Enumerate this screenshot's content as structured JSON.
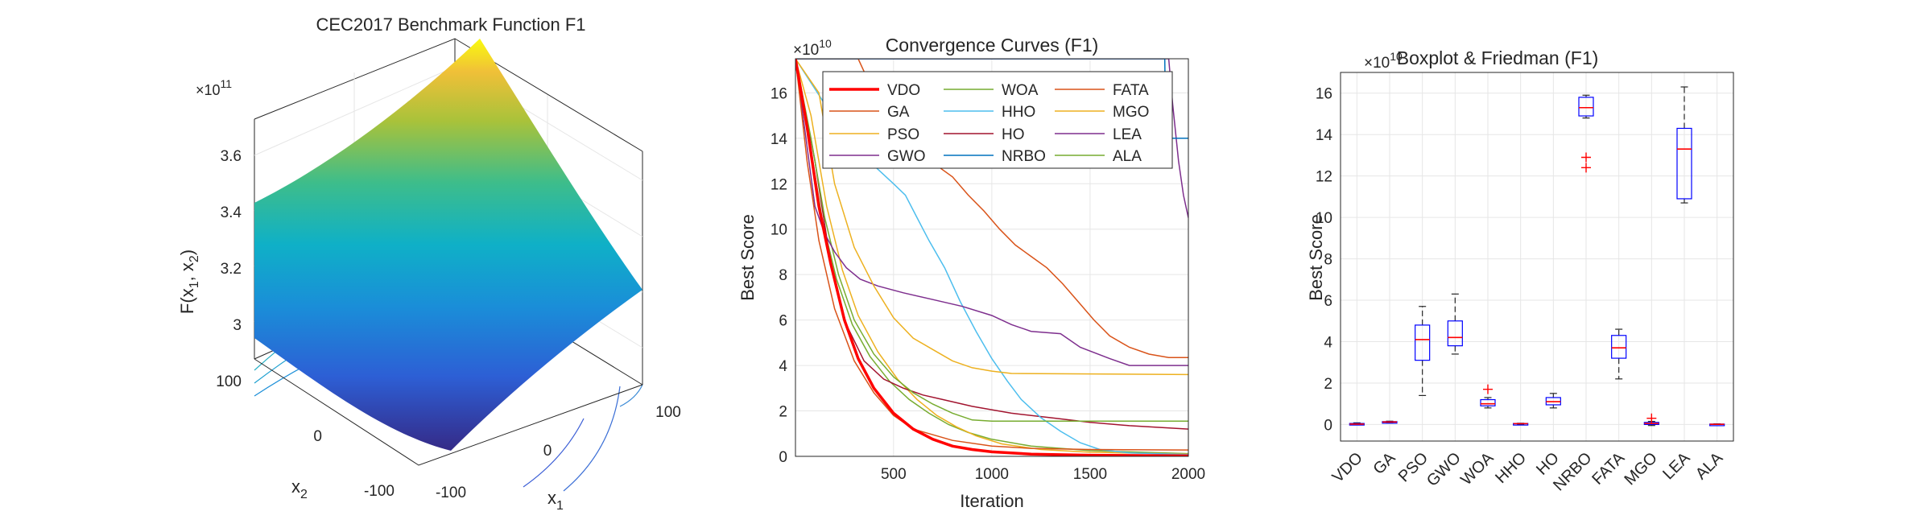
{
  "chart_data": [
    {
      "type": "surface",
      "title": "CEC2017 Benchmark Function F1",
      "zlabel_main": "F(x",
      "zlabel_sub1": "1",
      "zlabel_mid": ", x",
      "zlabel_sub2": "2",
      "zlabel_end": ")",
      "xlabel_main": "x",
      "xlabel_sub": "1",
      "ylabel_main": "x",
      "ylabel_sub": "2",
      "exponent_base": "×10",
      "exponent_power": "11",
      "z_ticks": [
        "3",
        "3.2",
        "3.4",
        "3.6"
      ],
      "z_tick_values": [
        3.0,
        3.2,
        3.4,
        3.6
      ],
      "x_ticks": [
        "-100",
        "0",
        "100"
      ],
      "y_ticks": [
        "100",
        "0",
        "-100"
      ],
      "zlim": [
        2.9,
        3.85
      ],
      "colormap": "parula"
    },
    {
      "type": "line",
      "title": "Convergence Curves (F1)",
      "xlabel": "Iteration",
      "ylabel": "Best Score",
      "exponent_base": "×10",
      "exponent_power": "10",
      "xlim": [
        1,
        2000
      ],
      "ylim": [
        0,
        17.5
      ],
      "x_ticks": [
        500,
        1000,
        1500,
        2000
      ],
      "y_ticks": [
        0,
        2,
        4,
        6,
        8,
        10,
        12,
        14,
        16
      ],
      "series": [
        {
          "name": "VDO",
          "color": "#ff0000",
          "width": 3.5,
          "points": [
            [
              1,
              17.5
            ],
            [
              60,
              14.5
            ],
            [
              120,
              11
            ],
            [
              180,
              8.5
            ],
            [
              250,
              6
            ],
            [
              320,
              4.3
            ],
            [
              400,
              3.0
            ],
            [
              500,
              1.9
            ],
            [
              600,
              1.2
            ],
            [
              700,
              0.75
            ],
            [
              800,
              0.45
            ],
            [
              900,
              0.3
            ],
            [
              1000,
              0.2
            ],
            [
              1200,
              0.1
            ],
            [
              1500,
              0.05
            ],
            [
              2000,
              0.02
            ]
          ]
        },
        {
          "name": "GA",
          "color": "#d95319",
          "width": 1.5,
          "points": [
            [
              1,
              17.5
            ],
            [
              60,
              13
            ],
            [
              120,
              9.5
            ],
            [
              200,
              6.5
            ],
            [
              300,
              4.2
            ],
            [
              400,
              2.8
            ],
            [
              500,
              1.8
            ],
            [
              600,
              1.2
            ],
            [
              800,
              0.7
            ],
            [
              1000,
              0.45
            ],
            [
              1200,
              0.35
            ],
            [
              1500,
              0.3
            ],
            [
              2000,
              0.28
            ]
          ]
        },
        {
          "name": "PSO",
          "color": "#edb120",
          "width": 1.5,
          "points": [
            [
              1,
              17.5
            ],
            [
              120,
              16
            ],
            [
              200,
              12
            ],
            [
              300,
              9.2
            ],
            [
              400,
              7.5
            ],
            [
              500,
              6.1
            ],
            [
              600,
              5.2
            ],
            [
              700,
              4.7
            ],
            [
              800,
              4.2
            ],
            [
              900,
              3.9
            ],
            [
              1000,
              3.75
            ],
            [
              1100,
              3.65
            ],
            [
              2000,
              3.6
            ]
          ]
        },
        {
          "name": "GWO",
          "color": "#7e2f8e",
          "width": 1.5,
          "points": [
            [
              1,
              17.5
            ],
            [
              100,
              11
            ],
            [
              150,
              9.8
            ],
            [
              200,
              9
            ],
            [
              260,
              8.3
            ],
            [
              330,
              7.8
            ],
            [
              420,
              7.5
            ],
            [
              550,
              7.2
            ],
            [
              700,
              6.9
            ],
            [
              850,
              6.6
            ],
            [
              1000,
              6.2
            ],
            [
              1100,
              5.8
            ],
            [
              1200,
              5.5
            ],
            [
              1350,
              5.4
            ],
            [
              1450,
              4.8
            ],
            [
              1600,
              4.3
            ],
            [
              1700,
              4.0
            ],
            [
              2000,
              4.0
            ]
          ]
        },
        {
          "name": "WOA",
          "color": "#77ac30",
          "width": 1.5,
          "points": [
            [
              1,
              17.5
            ],
            [
              80,
              14
            ],
            [
              150,
              10.5
            ],
            [
              220,
              8
            ],
            [
              300,
              6
            ],
            [
              400,
              4.5
            ],
            [
              500,
              3.5
            ],
            [
              600,
              2.8
            ],
            [
              700,
              2.3
            ],
            [
              800,
              1.9
            ],
            [
              900,
              1.6
            ],
            [
              1000,
              1.55
            ],
            [
              2000,
              1.55
            ]
          ]
        },
        {
          "name": "HHO",
          "color": "#4dbeee",
          "width": 1.5,
          "points": [
            [
              1,
              17.5
            ],
            [
              300,
              13.5
            ],
            [
              400,
              12.8
            ],
            [
              500,
              12
            ],
            [
              560,
              11.5
            ],
            [
              620,
              10.5
            ],
            [
              680,
              9.5
            ],
            [
              760,
              8.3
            ],
            [
              840,
              6.8
            ],
            [
              920,
              5.5
            ],
            [
              1000,
              4.3
            ],
            [
              1080,
              3.3
            ],
            [
              1150,
              2.5
            ],
            [
              1250,
              1.7
            ],
            [
              1350,
              1.1
            ],
            [
              1450,
              0.6
            ],
            [
              1550,
              0.3
            ],
            [
              1700,
              0.15
            ],
            [
              2000,
              0.08
            ]
          ]
        },
        {
          "name": "HO",
          "color": "#a2142f",
          "width": 1.5,
          "points": [
            [
              1,
              17.5
            ],
            [
              100,
              13
            ],
            [
              180,
              8.5
            ],
            [
              260,
              5.8
            ],
            [
              350,
              4.2
            ],
            [
              450,
              3.4
            ],
            [
              550,
              3.0
            ],
            [
              650,
              2.7
            ],
            [
              750,
              2.5
            ],
            [
              900,
              2.2
            ],
            [
              1100,
              1.9
            ],
            [
              1300,
              1.7
            ],
            [
              1500,
              1.5
            ],
            [
              1700,
              1.35
            ],
            [
              2000,
              1.2
            ]
          ]
        },
        {
          "name": "NRBO",
          "color": "#0072bd",
          "width": 1.5,
          "points": [
            [
              1,
              17.5
            ],
            [
              1880,
              17.5
            ],
            [
              1885,
              14.0
            ],
            [
              2000,
              14.0
            ]
          ]
        },
        {
          "name": "FATA",
          "color": "#d95319",
          "width": 1.5,
          "points": [
            [
              1,
              17.5
            ],
            [
              320,
              17.5
            ],
            [
              400,
              16
            ],
            [
              480,
              14.5
            ],
            [
              560,
              13.5
            ],
            [
              640,
              13
            ],
            [
              720,
              12.8
            ],
            [
              800,
              12.3
            ],
            [
              880,
              11.5
            ],
            [
              960,
              10.8
            ],
            [
              1040,
              10
            ],
            [
              1120,
              9.3
            ],
            [
              1200,
              8.8
            ],
            [
              1280,
              8.3
            ],
            [
              1360,
              7.6
            ],
            [
              1440,
              6.8
            ],
            [
              1520,
              6.0
            ],
            [
              1600,
              5.3
            ],
            [
              1700,
              4.8
            ],
            [
              1800,
              4.5
            ],
            [
              1900,
              4.35
            ],
            [
              2000,
              4.35
            ]
          ]
        },
        {
          "name": "MGO",
          "color": "#edb120",
          "width": 1.5,
          "points": [
            [
              1,
              17.5
            ],
            [
              80,
              15
            ],
            [
              160,
              11
            ],
            [
              240,
              8.2
            ],
            [
              320,
              6.2
            ],
            [
              420,
              4.6
            ],
            [
              520,
              3.4
            ],
            [
              620,
              2.5
            ],
            [
              720,
              1.8
            ],
            [
              820,
              1.3
            ],
            [
              920,
              0.9
            ],
            [
              1050,
              0.55
            ],
            [
              1250,
              0.3
            ],
            [
              1500,
              0.18
            ],
            [
              2000,
              0.1
            ]
          ]
        },
        {
          "name": "LEA",
          "color": "#7e2f8e",
          "width": 1.5,
          "points": [
            [
              1,
              17.5
            ],
            [
              1900,
              17.5
            ],
            [
              1920,
              15.5
            ],
            [
              1950,
              13
            ],
            [
              1975,
              11.5
            ],
            [
              2000,
              10.5
            ]
          ]
        },
        {
          "name": "ALA",
          "color": "#77ac30",
          "width": 1.5,
          "points": [
            [
              1,
              17.5
            ],
            [
              70,
              14
            ],
            [
              140,
              10.3
            ],
            [
              210,
              7.8
            ],
            [
              290,
              5.8
            ],
            [
              380,
              4.4
            ],
            [
              480,
              3.3
            ],
            [
              580,
              2.5
            ],
            [
              680,
              1.9
            ],
            [
              780,
              1.4
            ],
            [
              880,
              1.05
            ],
            [
              1000,
              0.75
            ],
            [
              1200,
              0.45
            ],
            [
              1500,
              0.25
            ],
            [
              2000,
              0.12
            ]
          ]
        }
      ]
    },
    {
      "type": "boxplot",
      "title": "Boxplot & Friedman (F1)",
      "ylabel": "Best Score",
      "exponent_base": "×10",
      "exponent_power": "10",
      "ylim": [
        -0.8,
        17
      ],
      "y_ticks": [
        0,
        2,
        4,
        6,
        8,
        10,
        12,
        14,
        16
      ],
      "categories": [
        "VDO",
        "GA",
        "PSO",
        "GWO",
        "WOA",
        "HHO",
        "HO",
        "NRBO",
        "FATA",
        "MGO",
        "LEA",
        "ALA"
      ],
      "boxes": [
        {
          "min": 0.0,
          "q1": 0.0,
          "median": 0.02,
          "q3": 0.05,
          "max": 0.08,
          "outliers": []
        },
        {
          "min": 0.08,
          "q1": 0.1,
          "median": 0.12,
          "q3": 0.14,
          "max": 0.16,
          "outliers": []
        },
        {
          "min": 1.4,
          "q1": 3.1,
          "median": 4.1,
          "q3": 4.8,
          "max": 5.7,
          "outliers": []
        },
        {
          "min": 3.4,
          "q1": 3.8,
          "median": 4.2,
          "q3": 5.0,
          "max": 6.3,
          "outliers": []
        },
        {
          "min": 0.8,
          "q1": 0.9,
          "median": 1.0,
          "q3": 1.2,
          "max": 1.3,
          "outliers": [
            1.7
          ]
        },
        {
          "min": 0.02,
          "q1": 0.03,
          "median": 0.04,
          "q3": 0.05,
          "max": 0.06,
          "outliers": []
        },
        {
          "min": 0.8,
          "q1": 0.95,
          "median": 1.1,
          "q3": 1.3,
          "max": 1.5,
          "outliers": []
        },
        {
          "min": 14.8,
          "q1": 14.9,
          "median": 15.3,
          "q3": 15.8,
          "max": 15.9,
          "outliers": [
            12.9,
            12.4
          ]
        },
        {
          "min": 2.2,
          "q1": 3.2,
          "median": 3.7,
          "q3": 4.3,
          "max": 4.6,
          "outliers": []
        },
        {
          "min": -0.05,
          "q1": 0.0,
          "median": 0.05,
          "q3": 0.1,
          "max": 0.15,
          "outliers": [
            0.3
          ]
        },
        {
          "min": 10.7,
          "q1": 10.9,
          "median": 13.3,
          "q3": 14.3,
          "max": 16.3,
          "outliers": []
        },
        {
          "min": 0.0,
          "q1": 0.0,
          "median": 0.01,
          "q3": 0.02,
          "max": 0.03,
          "outliers": []
        }
      ]
    }
  ]
}
